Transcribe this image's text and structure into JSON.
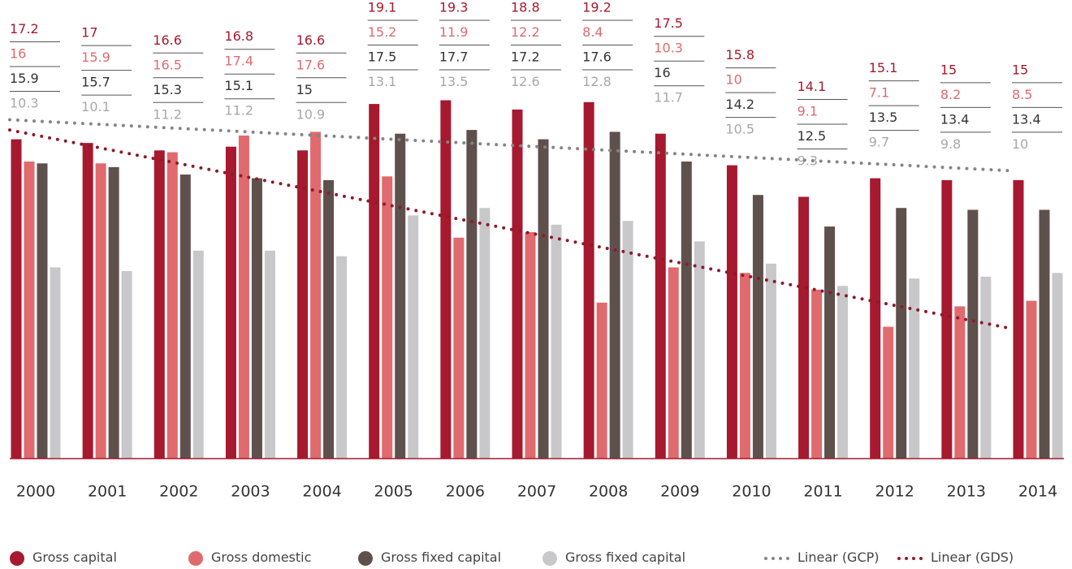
{
  "chart_data": {
    "type": "bar",
    "categories": [
      "2000",
      "2001",
      "2002",
      "2003",
      "2004",
      "2005",
      "2006",
      "2007",
      "2008",
      "2009",
      "2010",
      "2011",
      "2012",
      "2013",
      "2014"
    ],
    "series": [
      {
        "name": "Gross capital formation",
        "color": "#a6192e",
        "values": [
          17.2,
          17.0,
          16.6,
          16.8,
          16.6,
          19.1,
          19.3,
          18.8,
          19.2,
          17.5,
          15.8,
          14.1,
          15.1,
          15.0,
          15.0
        ]
      },
      {
        "name": "Gross domestic savings",
        "color": "#e06a6e",
        "values": [
          16.0,
          15.9,
          16.5,
          17.4,
          17.6,
          15.2,
          11.9,
          12.2,
          8.4,
          10.3,
          10.0,
          9.1,
          7.1,
          8.2,
          8.5
        ]
      },
      {
        "name": "Gross fixed capital formation",
        "color": "#5e504c",
        "values": [
          15.9,
          15.7,
          15.3,
          15.1,
          15.0,
          17.5,
          17.7,
          17.2,
          17.6,
          16.0,
          14.2,
          12.5,
          13.5,
          13.4,
          13.4
        ]
      },
      {
        "name": "Gross fixed capital formation, private sector",
        "color": "#c8c8ca",
        "values": [
          10.3,
          10.1,
          11.2,
          11.2,
          10.9,
          13.1,
          13.5,
          12.6,
          12.8,
          11.7,
          10.5,
          9.3,
          9.7,
          9.8,
          10.0
        ]
      }
    ],
    "trendlines": [
      {
        "name": "Linear (GCP)",
        "color": "#858585",
        "values": [
          18.25,
          15.5
        ]
      },
      {
        "name": "Linear (GDS)",
        "color": "#8e1a2a",
        "values": [
          17.7,
          7.0
        ]
      }
    ],
    "ylim": [
      0,
      24.7
    ]
  }
}
